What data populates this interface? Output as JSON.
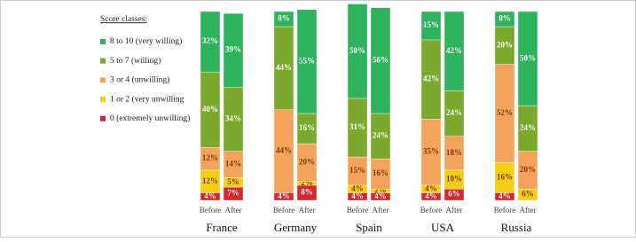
{
  "chart_data": {
    "type": "stacked_bar",
    "legend_title": "Score classes:",
    "groups": [
      "France",
      "Germany",
      "Spain",
      "USA",
      "Russia"
    ],
    "categories": [
      "Before",
      "After",
      "Before",
      "After",
      "Before",
      "After",
      "Before",
      "After",
      "Before",
      "After"
    ],
    "series": [
      {
        "name": "0 (extremely unwilling)",
        "color": "#d7262c",
        "values": [
          4,
          7,
          4,
          8,
          4,
          4,
          4,
          6,
          4,
          0
        ],
        "value_labels": [
          "4%",
          "7%",
          "4%",
          "8%",
          "4%",
          "4%",
          "4%",
          "6%",
          "4%",
          null
        ]
      },
      {
        "name": "1 or 2 (very unwilling",
        "color": "#f2cf12",
        "values": [
          12,
          5,
          0,
          2,
          4,
          2,
          4,
          10,
          16,
          6
        ],
        "value_labels": [
          "12%",
          "5%",
          null,
          "2%",
          "4%",
          "2%",
          "4%",
          "10%",
          "16%",
          "6%"
        ]
      },
      {
        "name": "3 or 4 (unwilling)",
        "color": "#f5a35a",
        "values": [
          12,
          14,
          44,
          20,
          15,
          16,
          35,
          18,
          52,
          20
        ],
        "value_labels": [
          "12%",
          "14%",
          "44%",
          "20%",
          "15%",
          "16%",
          "35%",
          "18%",
          "52%",
          "20%"
        ]
      },
      {
        "name": "5 to 7 (willing)",
        "color": "#7aa92c",
        "values": [
          40,
          34,
          44,
          16,
          31,
          24,
          42,
          24,
          20,
          24
        ],
        "value_labels": [
          "40%",
          "34%",
          "44%",
          "16%",
          "31%",
          "24%",
          "42%",
          "24%",
          "20%",
          "24%"
        ]
      },
      {
        "name": "8 to 10 (very willing)",
        "color": "#2cb35c",
        "values": [
          32,
          39,
          8,
          55,
          50,
          56,
          15,
          42,
          8,
          50
        ],
        "value_labels": [
          "32%",
          "39%",
          "8%",
          "55%",
          "50%",
          "56%",
          "15%",
          "42%",
          "8%",
          "50%"
        ]
      }
    ]
  }
}
